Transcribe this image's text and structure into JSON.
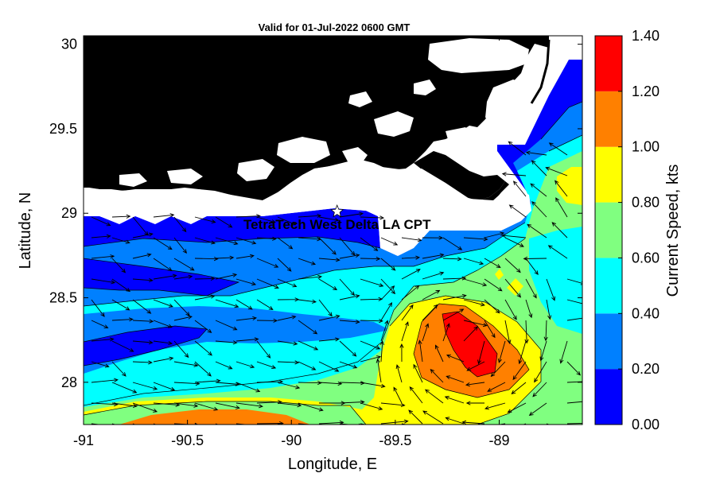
{
  "title": "Valid for 01-Jul-2022 0600 GMT",
  "station": {
    "label": "TetraTech West Delta LA CPT",
    "lon": -89.78,
    "lat": 29.01
  },
  "axes": {
    "xlabel": "Longitude, E",
    "ylabel": "Latitude, N",
    "xlim": [
      -91.0,
      -88.6
    ],
    "ylim": [
      27.75,
      30.05
    ],
    "xticks": [
      {
        "value": -91,
        "label": "-91"
      },
      {
        "value": -90.5,
        "label": "-90.5"
      },
      {
        "value": -90,
        "label": "-90"
      },
      {
        "value": -89.5,
        "label": "-89.5"
      },
      {
        "value": -89,
        "label": "-89"
      }
    ],
    "yticks": [
      {
        "value": 28,
        "label": "28"
      },
      {
        "value": 28.5,
        "label": "28.5"
      },
      {
        "value": 29,
        "label": "29"
      },
      {
        "value": 29.5,
        "label": "29.5"
      },
      {
        "value": 30,
        "label": "30"
      }
    ]
  },
  "colorbar": {
    "label": "Current Speed, kts",
    "levels": [
      {
        "min": 0.0,
        "max": 0.2,
        "color": "#0000ff"
      },
      {
        "min": 0.2,
        "max": 0.4,
        "color": "#0080ff"
      },
      {
        "min": 0.4,
        "max": 0.6,
        "color": "#00ffff"
      },
      {
        "min": 0.6,
        "max": 0.8,
        "color": "#80ff80"
      },
      {
        "min": 0.8,
        "max": 1.0,
        "color": "#ffff00"
      },
      {
        "min": 1.0,
        "max": 1.2,
        "color": "#ff8000"
      },
      {
        "min": 1.2,
        "max": 1.4,
        "color": "#ff0000"
      }
    ],
    "ticks": [
      "0.00",
      "0.20",
      "0.40",
      "0.60",
      "0.80",
      "1.00",
      "1.20",
      "1.40"
    ]
  },
  "colors": {
    "land": "#000000",
    "nodata": "#ffffff",
    "arrow": "#000000",
    "contour": "#000000"
  }
}
